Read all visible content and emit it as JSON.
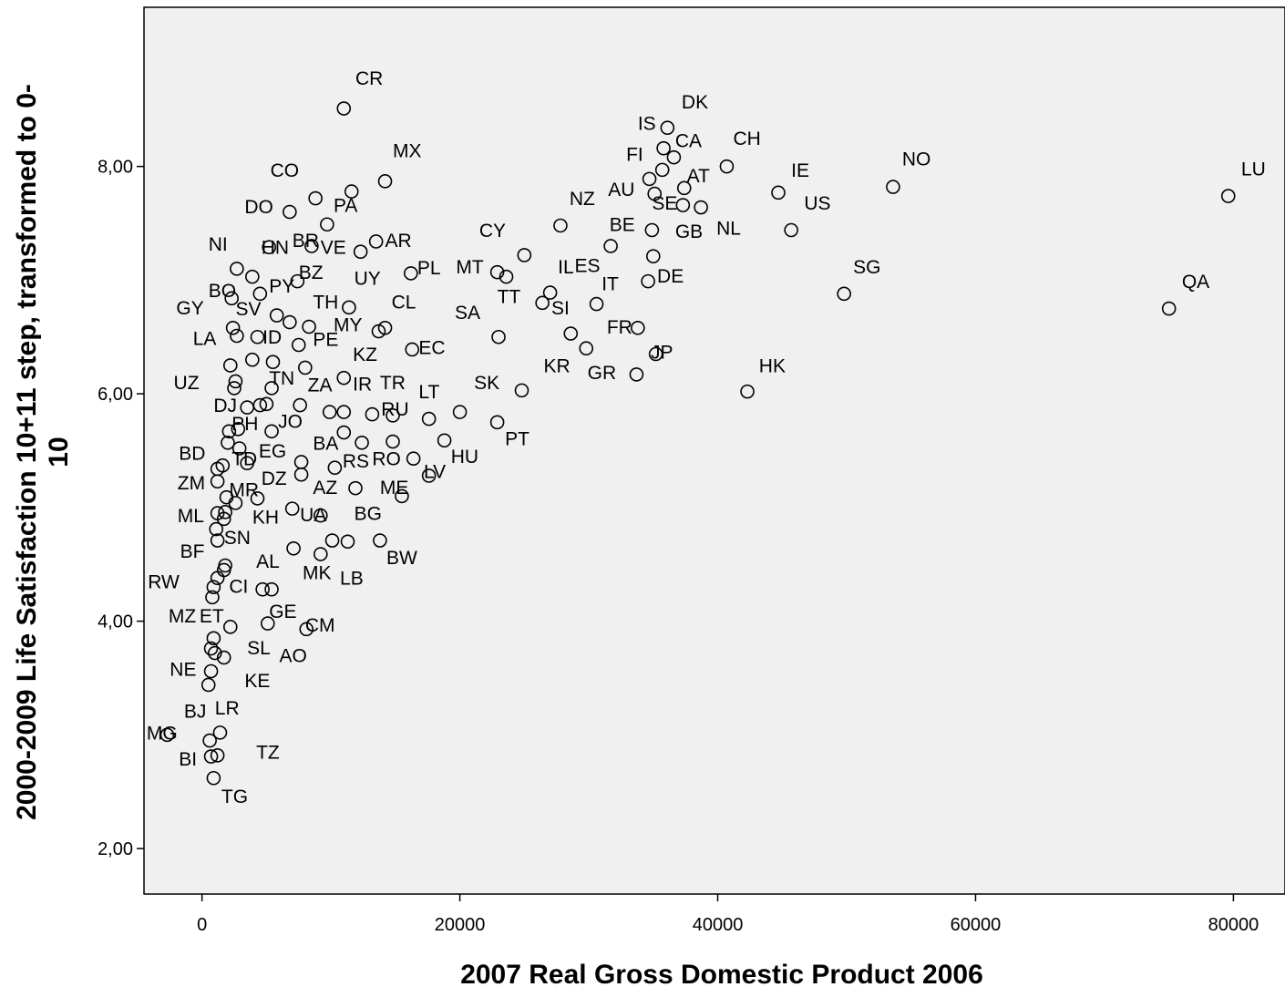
{
  "chart_data": {
    "type": "scatter",
    "xlabel": "2007 Real Gross Domestic Product 2006",
    "ylabel_line1": "2000-2009 Life Satisfaction 10+11 step, transformed to 0-",
    "ylabel_line2": "10",
    "xlim": [
      -4500,
      84000
    ],
    "ylim": [
      1.6,
      9.4
    ],
    "xticks": [
      0,
      20000,
      40000,
      60000,
      80000
    ],
    "xtick_labels": [
      "0",
      "20000",
      "40000",
      "60000",
      "80000"
    ],
    "yticks": [
      2,
      4,
      6,
      8
    ],
    "ytick_labels": [
      "2,00",
      "4,00",
      "6,00",
      "8,00"
    ],
    "grid": false,
    "background": "#f0f0f0",
    "marker": "hollow-circle",
    "points": [
      {
        "x": 11000,
        "y": 8.51,
        "label": "CR",
        "lx": 11900,
        "ly": 8.72
      },
      {
        "x": 14200,
        "y": 7.87,
        "label": "MX",
        "lx": 14800,
        "ly": 8.08
      },
      {
        "x": 8800,
        "y": 7.72,
        "label": "CO",
        "lx": 5300,
        "ly": 7.91
      },
      {
        "x": 11600,
        "y": 7.78
      },
      {
        "x": 6800,
        "y": 7.6,
        "label": "DO",
        "lx": 3300,
        "ly": 7.59
      },
      {
        "x": 9700,
        "y": 7.49,
        "label": "PA",
        "lx": 10200,
        "ly": 7.6
      },
      {
        "x": 13500,
        "y": 7.34,
        "label": "AR",
        "lx": 14200,
        "ly": 7.29
      },
      {
        "x": 12300,
        "y": 7.25,
        "label": "VE",
        "lx": 9200,
        "ly": 7.23
      },
      {
        "x": 8500,
        "y": 7.3,
        "label": "BR",
        "lx": 7000,
        "ly": 7.29
      },
      {
        "x": 2700,
        "y": 7.1,
        "label": "NI",
        "lx": 500,
        "ly": 7.26
      },
      {
        "x": 3900,
        "y": 7.03
      },
      {
        "x": 5200,
        "y": 7.29,
        "label": "HN",
        "lx": 4600,
        "ly": 7.23
      },
      {
        "x": 2300,
        "y": 6.84,
        "label": "BO",
        "lx": 500,
        "ly": 6.85
      },
      {
        "x": 4500,
        "y": 6.88,
        "label": "PY",
        "lx": 5200,
        "ly": 6.89
      },
      {
        "x": 7400,
        "y": 6.99,
        "label": "BZ",
        "lx": 7500,
        "ly": 7.01
      },
      {
        "x": 11400,
        "y": 6.76,
        "label": "UY",
        "lx": 11800,
        "ly": 6.96
      },
      {
        "x": 16200,
        "y": 7.06,
        "label": "PL",
        "lx": 16700,
        "ly": 7.05
      },
      {
        "x": 2400,
        "y": 6.58,
        "label": "GY",
        "lx": -2000,
        "ly": 6.7
      },
      {
        "x": 2700,
        "y": 6.51,
        "label": "SV",
        "lx": 2600,
        "ly": 6.69
      },
      {
        "x": 5800,
        "y": 6.69
      },
      {
        "x": 6800,
        "y": 6.63
      },
      {
        "x": 8300,
        "y": 6.59,
        "label": "TH",
        "lx": 8600,
        "ly": 6.75
      },
      {
        "x": 13700,
        "y": 6.55,
        "label": "MY",
        "lx": 10200,
        "ly": 6.55
      },
      {
        "x": 14200,
        "y": 6.58,
        "label": "CL",
        "lx": 14700,
        "ly": 6.75
      },
      {
        "x": 4300,
        "y": 6.5,
        "label": "ID",
        "lx": 4700,
        "ly": 6.44
      },
      {
        "x": 7500,
        "y": 6.43,
        "label": "PE",
        "lx": 8600,
        "ly": 6.42
      },
      {
        "x": 16300,
        "y": 6.39,
        "label": "EC",
        "lx": 16800,
        "ly": 6.35
      },
      {
        "x": 2200,
        "y": 6.25,
        "label": "LA",
        "lx": -700,
        "ly": 6.43
      },
      {
        "x": 3900,
        "y": 6.3
      },
      {
        "x": 5500,
        "y": 6.28
      },
      {
        "x": 8000,
        "y": 6.23
      },
      {
        "x": 11000,
        "y": 6.14,
        "label": "KZ",
        "lx": 11700,
        "ly": 6.29
      },
      {
        "x": 2600,
        "y": 6.11,
        "label": "UZ",
        "lx": -2200,
        "ly": 6.04
      },
      {
        "x": 2500,
        "y": 6.05
      },
      {
        "x": 5400,
        "y": 6.05,
        "label": "TN",
        "lx": 5200,
        "ly": 6.08
      },
      {
        "x": 3500,
        "y": 5.88,
        "label": "DJ",
        "lx": 900,
        "ly": 5.84
      },
      {
        "x": 4500,
        "y": 5.9
      },
      {
        "x": 5000,
        "y": 5.91
      },
      {
        "x": 7600,
        "y": 5.9,
        "label": "ZA",
        "lx": 8200,
        "ly": 6.02
      },
      {
        "x": 9900,
        "y": 5.84
      },
      {
        "x": 11000,
        "y": 5.84,
        "label": "IR",
        "lx": 11700,
        "ly": 6.03
      },
      {
        "x": 13200,
        "y": 5.82,
        "label": "TR",
        "lx": 13800,
        "ly": 6.04
      },
      {
        "x": 14800,
        "y": 5.81,
        "label": "RU",
        "lx": 13900,
        "ly": 5.81
      },
      {
        "x": 17600,
        "y": 5.78,
        "label": "LT",
        "lx": 16800,
        "ly": 5.96
      },
      {
        "x": 20000,
        "y": 5.84,
        "label": "SK",
        "lx": 21100,
        "ly": 6.04
      },
      {
        "x": 2100,
        "y": 5.67,
        "label": "PH",
        "lx": 2300,
        "ly": 5.68
      },
      {
        "x": 2800,
        "y": 5.69
      },
      {
        "x": 5400,
        "y": 5.67,
        "label": "JO",
        "lx": 5900,
        "ly": 5.7
      },
      {
        "x": 11000,
        "y": 5.66
      },
      {
        "x": 2000,
        "y": 5.57
      },
      {
        "x": 2900,
        "y": 5.52
      },
      {
        "x": 7700,
        "y": 5.4,
        "label": "EG",
        "lx": 4400,
        "ly": 5.44
      },
      {
        "x": 12400,
        "y": 5.57,
        "label": "BA",
        "lx": 8600,
        "ly": 5.51
      },
      {
        "x": 14800,
        "y": 5.58
      },
      {
        "x": 18800,
        "y": 5.59,
        "label": "HU",
        "lx": 19300,
        "ly": 5.39
      },
      {
        "x": 22900,
        "y": 5.75,
        "label": "PT",
        "lx": 23500,
        "ly": 5.55
      },
      {
        "x": 1200,
        "y": 5.34,
        "label": "BD",
        "lx": -1800,
        "ly": 5.42
      },
      {
        "x": 1600,
        "y": 5.37
      },
      {
        "x": 3500,
        "y": 5.39,
        "label": "TD",
        "lx": 2300,
        "ly": 5.37
      },
      {
        "x": 7700,
        "y": 5.29,
        "label": "DZ",
        "lx": 4600,
        "ly": 5.2
      },
      {
        "x": 10300,
        "y": 5.35,
        "label": "RS",
        "lx": 10900,
        "ly": 5.35
      },
      {
        "x": 16400,
        "y": 5.43,
        "label": "RO",
        "lx": 13200,
        "ly": 5.37
      },
      {
        "x": 17600,
        "y": 5.28,
        "label": "LV",
        "lx": 17200,
        "ly": 5.26
      },
      {
        "x": 1200,
        "y": 5.23,
        "label": "ZM",
        "lx": -1900,
        "ly": 5.16
      },
      {
        "x": 1900,
        "y": 5.09,
        "label": "MR",
        "lx": 2100,
        "ly": 5.1
      },
      {
        "x": 2600,
        "y": 5.04
      },
      {
        "x": 4300,
        "y": 5.08
      },
      {
        "x": 11900,
        "y": 5.17,
        "label": "AZ",
        "lx": 8600,
        "ly": 5.12
      },
      {
        "x": 15500,
        "y": 5.1,
        "label": "ME",
        "lx": 13800,
        "ly": 5.12
      },
      {
        "x": 1200,
        "y": 4.95,
        "label": "ML",
        "lx": -1900,
        "ly": 4.87
      },
      {
        "x": 1800,
        "y": 4.96
      },
      {
        "x": 1700,
        "y": 4.9,
        "label": "KH",
        "lx": 3900,
        "ly": 4.86
      },
      {
        "x": 7000,
        "y": 4.99
      },
      {
        "x": 9200,
        "y": 4.93,
        "label": "UA",
        "lx": 7600,
        "ly": 4.88
      },
      {
        "x": 1100,
        "y": 4.81
      },
      {
        "x": 1200,
        "y": 4.71,
        "label": "SN",
        "lx": 1700,
        "ly": 4.68
      },
      {
        "x": 7100,
        "y": 4.64,
        "label": "BG",
        "lx": 11800,
        "ly": 4.89
      },
      {
        "x": 9200,
        "y": 4.59,
        "label": "MK",
        "lx": 7800,
        "ly": 4.37
      },
      {
        "x": 10100,
        "y": 4.71
      },
      {
        "x": 11300,
        "y": 4.7,
        "label": "LB",
        "lx": 10700,
        "ly": 4.32
      },
      {
        "x": 13800,
        "y": 4.71,
        "label": "BW",
        "lx": 14300,
        "ly": 4.5
      },
      {
        "x": 1800,
        "y": 4.49,
        "label": "BF",
        "lx": -1700,
        "ly": 4.56
      },
      {
        "x": 1700,
        "y": 4.45,
        "label": "AL",
        "lx": 4200,
        "ly": 4.47
      },
      {
        "x": 1200,
        "y": 4.38,
        "label": "RW",
        "lx": -4200,
        "ly": 4.29
      },
      {
        "x": 900,
        "y": 4.3,
        "label": "CI",
        "lx": 2100,
        "ly": 4.25
      },
      {
        "x": 4700,
        "y": 4.28
      },
      {
        "x": 5400,
        "y": 4.28
      },
      {
        "x": 800,
        "y": 4.21
      },
      {
        "x": 2200,
        "y": 3.95,
        "label": "MZ",
        "lx": -2600,
        "ly": 3.99
      },
      {
        "x": 900,
        "y": 3.85,
        "label": "ET",
        "lx": -200,
        "ly": 3.99
      },
      {
        "x": 5100,
        "y": 3.98,
        "label": "GE",
        "lx": 5200,
        "ly": 4.03
      },
      {
        "x": 8100,
        "y": 3.93,
        "label": "CM",
        "lx": 8000,
        "ly": 3.91
      },
      {
        "x": 700,
        "y": 3.76
      },
      {
        "x": 1000,
        "y": 3.72,
        "label": "SL",
        "lx": 3500,
        "ly": 3.71
      },
      {
        "x": 1700,
        "y": 3.68,
        "label": "AO",
        "lx": 6000,
        "ly": 3.64
      },
      {
        "x": 700,
        "y": 3.56,
        "label": "NE",
        "lx": -2500,
        "ly": 3.52
      },
      {
        "x": 500,
        "y": 3.44,
        "label": "KE",
        "lx": 3300,
        "ly": 3.42
      },
      {
        "x": 1400,
        "y": 3.02,
        "label": "LR",
        "lx": 1000,
        "ly": 3.18
      },
      {
        "x": 600,
        "y": 2.95,
        "label": "BJ",
        "lx": -1400,
        "ly": 3.15
      },
      {
        "x": -2700,
        "y": 3.0,
        "label": "MG",
        "lx": -4300,
        "ly": 2.96
      },
      {
        "x": 1200,
        "y": 2.82,
        "label": "TZ",
        "lx": 4200,
        "ly": 2.79
      },
      {
        "x": 700,
        "y": 2.81,
        "label": "BI",
        "lx": -1800,
        "ly": 2.73
      },
      {
        "x": 900,
        "y": 2.62,
        "label": "TG",
        "lx": 1500,
        "ly": 2.4
      },
      {
        "x": 25000,
        "y": 7.22,
        "label": "CY",
        "lx": 21500,
        "ly": 7.38
      },
      {
        "x": 22900,
        "y": 7.07,
        "label": "MT",
        "lx": 19700,
        "ly": 7.06
      },
      {
        "x": 23600,
        "y": 7.03
      },
      {
        "x": 27000,
        "y": 6.89,
        "label": "IL",
        "lx": 27600,
        "ly": 7.06
      },
      {
        "x": 26400,
        "y": 6.8,
        "label": "ES",
        "lx": 28900,
        "ly": 7.07
      },
      {
        "x": 30600,
        "y": 6.79,
        "label": "IT",
        "lx": 31000,
        "ly": 6.91
      },
      {
        "x": 28600,
        "y": 6.53,
        "label": "SI",
        "lx": 27100,
        "ly": 6.7
      },
      {
        "x": 23000,
        "y": 6.5,
        "label": "SA",
        "lx": 19600,
        "ly": 6.66
      },
      {
        "x": 29800,
        "y": 6.4,
        "label": "TT",
        "lx": 22900,
        "ly": 6.8
      },
      {
        "x": 33800,
        "y": 6.58,
        "label": "FR",
        "lx": 31400,
        "ly": 6.53
      },
      {
        "x": 24800,
        "y": 6.03,
        "label": "KR",
        "lx": 26500,
        "ly": 6.19
      },
      {
        "x": 33700,
        "y": 6.17,
        "label": "GR",
        "lx": 29900,
        "ly": 6.13
      },
      {
        "x": 35200,
        "y": 6.35,
        "label": "JP",
        "lx": 34800,
        "ly": 6.31
      },
      {
        "x": 42300,
        "y": 6.02,
        "label": "HK",
        "lx": 43200,
        "ly": 6.19
      },
      {
        "x": 36100,
        "y": 8.34,
        "label": "DK",
        "lx": 37200,
        "ly": 8.51
      },
      {
        "x": 35800,
        "y": 8.16,
        "label": "IS",
        "lx": 33800,
        "ly": 8.32
      },
      {
        "x": 36600,
        "y": 8.08,
        "label": "CA",
        "lx": 36700,
        "ly": 8.17
      },
      {
        "x": 40700,
        "y": 8.0,
        "label": "CH",
        "lx": 41200,
        "ly": 8.19
      },
      {
        "x": 35700,
        "y": 7.97,
        "label": "FI",
        "lx": 32900,
        "ly": 8.05
      },
      {
        "x": 34700,
        "y": 7.89,
        "label": "AT",
        "lx": 37600,
        "ly": 7.86
      },
      {
        "x": 37400,
        "y": 7.81,
        "label": "AU",
        "lx": 31500,
        "ly": 7.74
      },
      {
        "x": 35100,
        "y": 7.76
      },
      {
        "x": 37300,
        "y": 7.66,
        "label": "SE",
        "lx": 34900,
        "ly": 7.62
      },
      {
        "x": 38700,
        "y": 7.64,
        "label": "NL",
        "lx": 39900,
        "ly": 7.4
      },
      {
        "x": 34900,
        "y": 7.44,
        "label": "GB",
        "lx": 36700,
        "ly": 7.37
      },
      {
        "x": 31700,
        "y": 7.3,
        "label": "BE",
        "lx": 31600,
        "ly": 7.43
      },
      {
        "x": 35000,
        "y": 7.21
      },
      {
        "x": 34600,
        "y": 6.99,
        "label": "DE",
        "lx": 35300,
        "ly": 6.98
      },
      {
        "x": 44700,
        "y": 7.77,
        "label": "IE",
        "lx": 45700,
        "ly": 7.91
      },
      {
        "x": 45700,
        "y": 7.44,
        "label": "US",
        "lx": 46700,
        "ly": 7.62
      },
      {
        "x": 27800,
        "y": 7.48,
        "label": "NZ",
        "lx": 28500,
        "ly": 7.66
      },
      {
        "x": 53600,
        "y": 7.82,
        "label": "NO",
        "lx": 54300,
        "ly": 8.01
      },
      {
        "x": 49800,
        "y": 6.88,
        "label": "SG",
        "lx": 50500,
        "ly": 7.06
      },
      {
        "x": 79600,
        "y": 7.74,
        "label": "LU",
        "lx": 80600,
        "ly": 7.92
      },
      {
        "x": 75000,
        "y": 6.75,
        "label": "QA",
        "lx": 76000,
        "ly": 6.93
      }
    ]
  }
}
